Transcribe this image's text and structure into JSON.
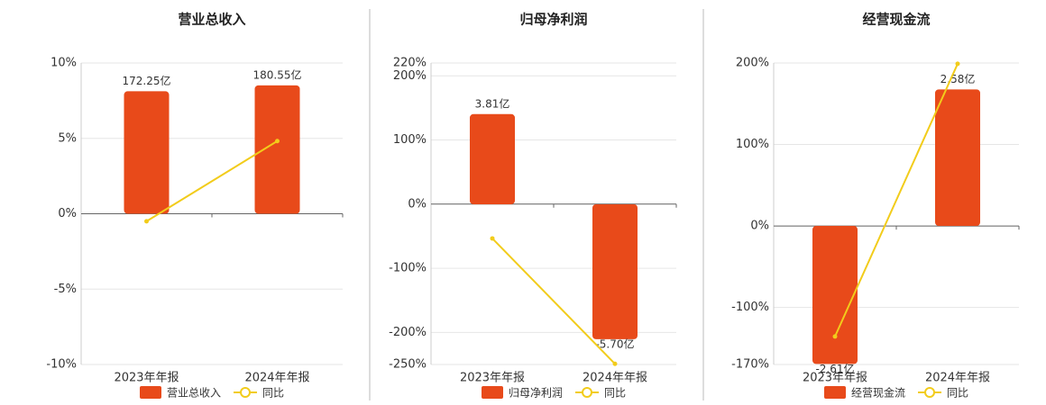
{
  "chart_data": [
    {
      "type": "bar",
      "title": "营业总收入",
      "categories": [
        "2023年年报",
        "2024年年报"
      ],
      "series": [
        {
          "name": "营业总收入",
          "type": "bar",
          "axis": "y2",
          "color": "#e84a1a",
          "values": [
            172.25,
            180.55
          ],
          "value_labels": [
            "172.25亿",
            "180.55亿"
          ]
        },
        {
          "name": "同比",
          "type": "line",
          "color": "#f2cc1b",
          "values": [
            -0.5,
            4.82
          ]
        }
      ],
      "ylim": [
        -10,
        10
      ],
      "yticks": [
        {
          "value": -10,
          "label": "-10%"
        },
        {
          "value": -5,
          "label": "-5%"
        },
        {
          "value": 0,
          "label": "0%"
        },
        {
          "value": 5,
          "label": "5%"
        },
        {
          "value": 10,
          "label": "10%"
        }
      ],
      "y2lim": [
        -212,
        212
      ],
      "grid": true
    },
    {
      "type": "bar",
      "title": "归母净利润",
      "categories": [
        "2023年年报",
        "2024年年报"
      ],
      "series": [
        {
          "name": "归母净利润",
          "type": "bar",
          "axis": "y2",
          "color": "#e84a1a",
          "values": [
            3.81,
            -5.7
          ],
          "value_labels": [
            "3.81亿",
            "-5.70亿"
          ]
        },
        {
          "name": "同比",
          "type": "line",
          "color": "#f2cc1b",
          "values": [
            -53.5,
            -249
          ]
        }
      ],
      "ylim": [
        -250,
        220
      ],
      "yticks": [
        {
          "value": -250,
          "label": "-250%"
        },
        {
          "value": -200,
          "label": "-200%"
        },
        {
          "value": -100,
          "label": "-100%"
        },
        {
          "value": 0,
          "label": "0%"
        },
        {
          "value": 100,
          "label": "100%"
        },
        {
          "value": 200,
          "label": "200%"
        },
        {
          "value": 220,
          "label": "220%"
        }
      ],
      "y2lim": [
        -6.77,
        5.97
      ],
      "grid": true
    },
    {
      "type": "bar",
      "title": "经营现金流",
      "categories": [
        "2023年年报",
        "2024年年报"
      ],
      "series": [
        {
          "name": "经营现金流",
          "type": "bar",
          "axis": "y2",
          "color": "#e84a1a",
          "values": [
            -2.61,
            2.58
          ],
          "value_labels": [
            "-2.61亿",
            "2.58亿"
          ]
        },
        {
          "name": "同比",
          "type": "line",
          "color": "#f2cc1b",
          "values": [
            -135.6,
            199
          ]
        }
      ],
      "ylim": [
        -170,
        200
      ],
      "yticks": [
        {
          "value": -170,
          "label": "-170%"
        },
        {
          "value": -100,
          "label": "-100%"
        },
        {
          "value": 0,
          "label": "0%"
        },
        {
          "value": 100,
          "label": "100%"
        },
        {
          "value": 200,
          "label": "200%"
        }
      ],
      "y2lim": [
        -2.62,
        3.08
      ],
      "grid": true
    }
  ]
}
